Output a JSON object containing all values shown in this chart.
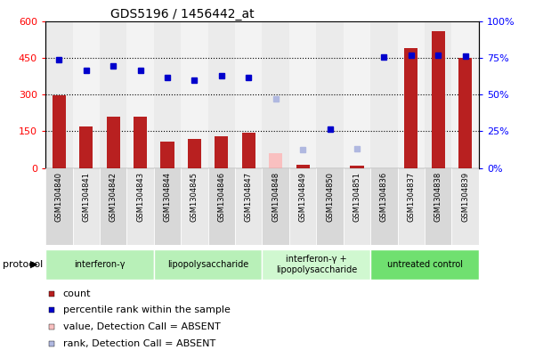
{
  "title": "GDS5196 / 1456442_at",
  "samples": [
    "GSM1304840",
    "GSM1304841",
    "GSM1304842",
    "GSM1304843",
    "GSM1304844",
    "GSM1304845",
    "GSM1304846",
    "GSM1304847",
    "GSM1304848",
    "GSM1304849",
    "GSM1304850",
    "GSM1304851",
    "GSM1304836",
    "GSM1304837",
    "GSM1304838",
    "GSM1304839"
  ],
  "counts": [
    298,
    168,
    210,
    208,
    107,
    120,
    130,
    143,
    null,
    15,
    null,
    8,
    null,
    490,
    560,
    450
  ],
  "counts_absent": [
    null,
    null,
    null,
    null,
    null,
    null,
    null,
    null,
    60,
    null,
    null,
    null,
    null,
    null,
    null,
    null
  ],
  "ranks": [
    443,
    400,
    418,
    400,
    368,
    358,
    376,
    368,
    null,
    null,
    157,
    null,
    454,
    460,
    462,
    455
  ],
  "ranks_absent_vals": [
    null,
    null,
    null,
    null,
    null,
    null,
    null,
    null,
    281,
    75,
    null,
    78,
    null,
    null,
    null,
    null
  ],
  "bar_color": "#b82020",
  "bar_absent_color": "#f9c0c0",
  "rank_color": "#0000cc",
  "rank_absent_color": "#b0b8e0",
  "ylim_left": [
    0,
    600
  ],
  "ylim_right": [
    0,
    100
  ],
  "yticks_left": [
    0,
    150,
    300,
    450,
    600
  ],
  "ytick_labels_left": [
    "0",
    "150",
    "300",
    "450",
    "600"
  ],
  "yticks_right_pct": [
    0,
    25,
    50,
    75,
    100
  ],
  "ytick_labels_right": [
    "0%",
    "25%",
    "50%",
    "75%",
    "100%"
  ],
  "gridline_vals": [
    150,
    300,
    450
  ],
  "protocols": [
    {
      "label": "interferon-γ",
      "start": 0,
      "end": 4,
      "color": "#b8f0b8"
    },
    {
      "label": "lipopolysaccharide",
      "start": 4,
      "end": 8,
      "color": "#b8f0b8"
    },
    {
      "label": "interferon-γ +\nlipopolysaccharide",
      "start": 8,
      "end": 12,
      "color": "#d0f8d0"
    },
    {
      "label": "untreated control",
      "start": 12,
      "end": 16,
      "color": "#70e070"
    }
  ],
  "legend_items": [
    {
      "label": "count",
      "color": "#b82020"
    },
    {
      "label": "percentile rank within the sample",
      "color": "#0000cc"
    },
    {
      "label": "value, Detection Call = ABSENT",
      "color": "#f9c0c0"
    },
    {
      "label": "rank, Detection Call = ABSENT",
      "color": "#b0b8e0"
    }
  ],
  "protocol_label": "protocol",
  "col_bg_even": "#d8d8d8",
  "col_bg_odd": "#e8e8e8",
  "plot_bg": "#ffffff",
  "tick_label_fontsize": 7,
  "bar_width": 0.5
}
